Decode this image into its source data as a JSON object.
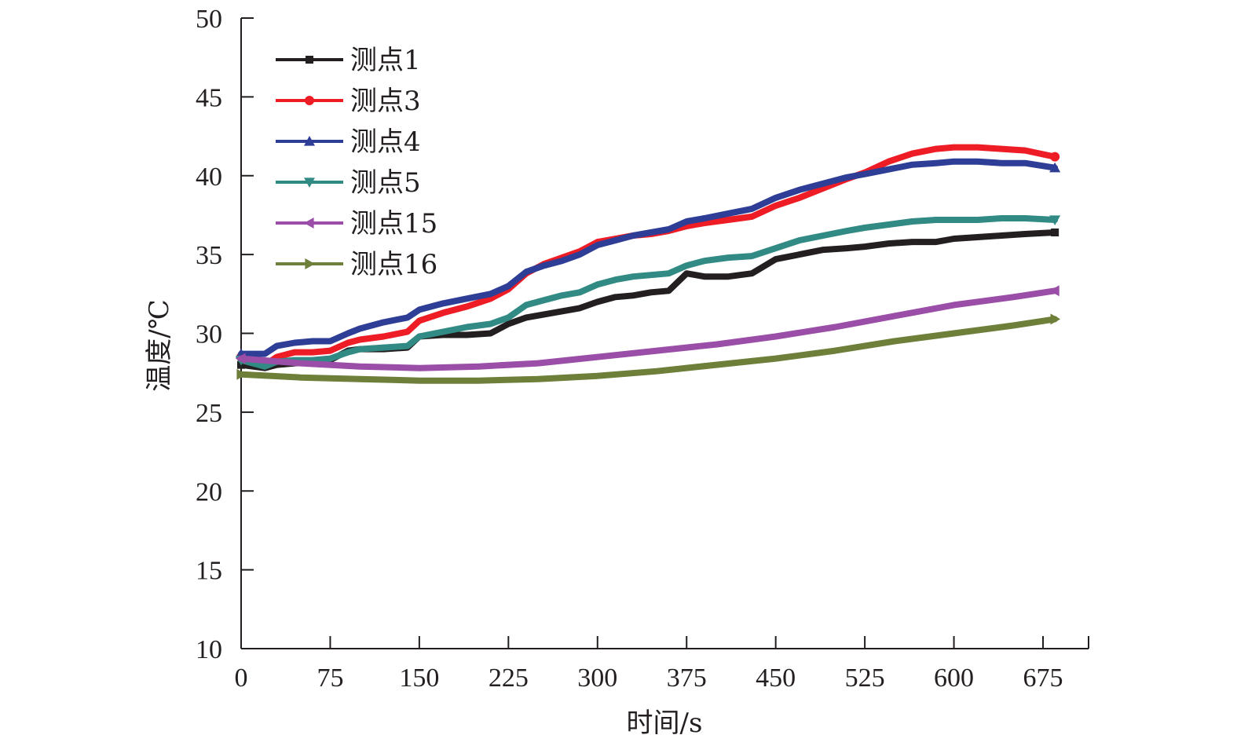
{
  "chart_data": {
    "type": "line",
    "title": "",
    "xlabel": "时间/s",
    "ylabel": "温度/℃",
    "xlim": [
      0,
      712
    ],
    "ylim": [
      10,
      50
    ],
    "xticks": [
      0,
      75,
      150,
      225,
      300,
      375,
      450,
      525,
      600,
      675
    ],
    "yticks": [
      10,
      15,
      20,
      25,
      30,
      35,
      40,
      45,
      50
    ],
    "grid": false,
    "legend_position": "top-left",
    "series": [
      {
        "name": "测点1",
        "color": "#231f20",
        "marker": "square",
        "x": [
          0,
          20,
          30,
          45,
          60,
          75,
          90,
          100,
          120,
          140,
          150,
          170,
          190,
          210,
          225,
          240,
          255,
          270,
          285,
          300,
          315,
          330,
          345,
          360,
          375,
          390,
          410,
          430,
          450,
          470,
          490,
          510,
          525,
          545,
          565,
          585,
          600,
          620,
          640,
          660,
          685
        ],
        "y": [
          28.0,
          27.8,
          28.0,
          28.1,
          28.2,
          28.3,
          28.9,
          29.0,
          29.0,
          29.1,
          29.8,
          29.9,
          29.9,
          30.0,
          30.6,
          31.0,
          31.2,
          31.4,
          31.6,
          32.0,
          32.3,
          32.4,
          32.6,
          32.7,
          33.8,
          33.6,
          33.6,
          33.8,
          34.7,
          35.0,
          35.3,
          35.4,
          35.5,
          35.7,
          35.8,
          35.8,
          36.0,
          36.1,
          36.2,
          36.3,
          36.4
        ]
      },
      {
        "name": "测点3",
        "color": "#ee1c25",
        "marker": "circle",
        "x": [
          0,
          20,
          30,
          45,
          60,
          75,
          90,
          100,
          120,
          140,
          150,
          170,
          190,
          210,
          225,
          240,
          255,
          270,
          285,
          300,
          315,
          330,
          345,
          360,
          375,
          390,
          410,
          430,
          450,
          470,
          490,
          510,
          525,
          545,
          565,
          585,
          600,
          620,
          640,
          660,
          685
        ],
        "y": [
          28.5,
          28.0,
          28.5,
          28.8,
          28.8,
          28.9,
          29.4,
          29.6,
          29.8,
          30.1,
          30.8,
          31.3,
          31.7,
          32.2,
          32.8,
          33.8,
          34.4,
          34.8,
          35.2,
          35.8,
          36.0,
          36.2,
          36.3,
          36.5,
          36.8,
          37.0,
          37.2,
          37.4,
          38.1,
          38.6,
          39.2,
          39.8,
          40.2,
          40.9,
          41.4,
          41.7,
          41.8,
          41.8,
          41.7,
          41.6,
          41.2
        ]
      },
      {
        "name": "测点4",
        "color": "#2e3d95",
        "marker": "triangle-up",
        "x": [
          0,
          20,
          30,
          45,
          60,
          75,
          90,
          100,
          120,
          140,
          150,
          170,
          190,
          210,
          225,
          240,
          255,
          270,
          285,
          300,
          315,
          330,
          345,
          360,
          375,
          390,
          410,
          430,
          450,
          470,
          490,
          510,
          525,
          545,
          565,
          585,
          600,
          620,
          640,
          660,
          685
        ],
        "y": [
          28.7,
          28.7,
          29.2,
          29.4,
          29.5,
          29.5,
          30.0,
          30.3,
          30.7,
          31.0,
          31.5,
          31.9,
          32.2,
          32.5,
          33.0,
          33.9,
          34.3,
          34.6,
          35.0,
          35.6,
          35.9,
          36.2,
          36.4,
          36.6,
          37.1,
          37.3,
          37.6,
          37.9,
          38.6,
          39.1,
          39.5,
          39.9,
          40.1,
          40.4,
          40.7,
          40.8,
          40.9,
          40.9,
          40.8,
          40.8,
          40.5
        ]
      },
      {
        "name": "测点5",
        "color": "#318a83",
        "marker": "triangle-down",
        "x": [
          0,
          20,
          30,
          45,
          60,
          75,
          90,
          100,
          120,
          140,
          150,
          170,
          190,
          210,
          225,
          240,
          255,
          270,
          285,
          300,
          315,
          330,
          345,
          360,
          375,
          390,
          410,
          430,
          450,
          470,
          490,
          510,
          525,
          545,
          565,
          585,
          600,
          620,
          640,
          660,
          685
        ],
        "y": [
          28.3,
          27.9,
          28.2,
          28.3,
          28.3,
          28.4,
          28.8,
          29.0,
          29.1,
          29.2,
          29.8,
          30.1,
          30.4,
          30.6,
          31.0,
          31.8,
          32.1,
          32.4,
          32.6,
          33.1,
          33.4,
          33.6,
          33.7,
          33.8,
          34.3,
          34.6,
          34.8,
          34.9,
          35.4,
          35.9,
          36.2,
          36.5,
          36.7,
          36.9,
          37.1,
          37.2,
          37.2,
          37.2,
          37.3,
          37.3,
          37.2
        ]
      },
      {
        "name": "测点15",
        "color": "#9b4ea8",
        "marker": "triangle-left",
        "x": [
          0,
          50,
          100,
          150,
          200,
          250,
          300,
          350,
          400,
          450,
          500,
          550,
          600,
          650,
          685
        ],
        "y": [
          28.4,
          28.1,
          27.9,
          27.8,
          27.9,
          28.1,
          28.5,
          28.9,
          29.3,
          29.8,
          30.4,
          31.1,
          31.8,
          32.3,
          32.7
        ]
      },
      {
        "name": "测点16",
        "color": "#6e7f3a",
        "marker": "triangle-right",
        "x": [
          0,
          50,
          100,
          150,
          200,
          250,
          300,
          350,
          400,
          450,
          500,
          550,
          600,
          650,
          685
        ],
        "y": [
          27.4,
          27.2,
          27.1,
          27.0,
          27.0,
          27.1,
          27.3,
          27.6,
          28.0,
          28.4,
          28.9,
          29.5,
          30.0,
          30.5,
          30.9
        ]
      }
    ]
  }
}
